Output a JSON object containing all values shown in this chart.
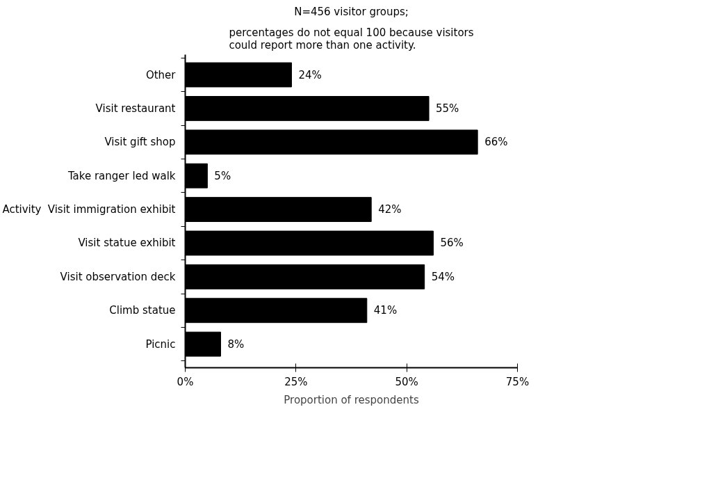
{
  "chart_data": {
    "type": "bar",
    "orientation": "horizontal",
    "title": "N=456 visitor groups;",
    "subtitle": "percentages do not equal 100 because visitors\ncould report more than one activity.",
    "xlabel": "Proportion of respondents",
    "ylabel": "Activity",
    "categories": [
      "Other",
      "Visit restaurant",
      "Visit gift shop",
      "Take ranger led walk",
      "Visit immigration exhibit",
      "Visit statue exhibit",
      "Visit observation deck",
      "Climb statue",
      "Picnic"
    ],
    "values": [
      24,
      55,
      66,
      5,
      42,
      56,
      54,
      41,
      8
    ],
    "value_labels": [
      "24%",
      "55%",
      "66%",
      "5%",
      "42%",
      "56%",
      "54%",
      "41%",
      "8%"
    ],
    "color": "#000000",
    "xlim": [
      0,
      75
    ],
    "xticks": [
      {
        "value": 0,
        "label": "0%"
      },
      {
        "value": 25,
        "label": "25%"
      },
      {
        "value": 50,
        "label": "50%"
      },
      {
        "value": 75,
        "label": "75%"
      }
    ],
    "grid": false
  }
}
